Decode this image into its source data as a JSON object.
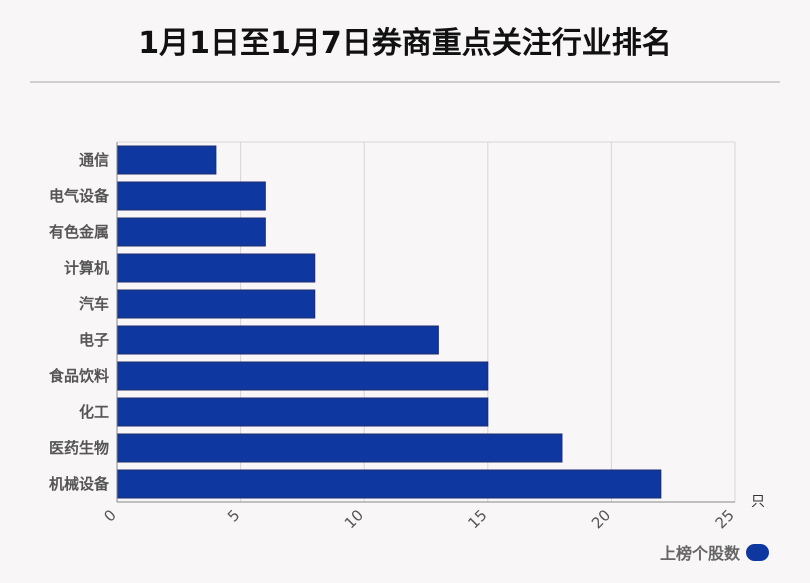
{
  "title": "1月1日至1月7日券商重点关注行业排名",
  "chart_data": {
    "type": "bar",
    "orientation": "horizontal",
    "title": "1月1日至1月7日券商重点关注行业排名",
    "categories": [
      "通信",
      "电气设备",
      "有色金属",
      "计算机",
      "汽车",
      "电子",
      "食品饮料",
      "化工",
      "医药生物",
      "机械设备"
    ],
    "series": [
      {
        "name": "上榜个股数",
        "values": [
          4,
          6,
          6,
          8,
          8,
          13,
          15,
          15,
          18,
          22
        ]
      }
    ],
    "xlim": [
      0,
      25
    ],
    "xticks": [
      0,
      5,
      10,
      15,
      20,
      25
    ],
    "xunit": "只",
    "grid": "vertical",
    "legend": "bottom-right",
    "colors": {
      "bar": "#0f37a0",
      "bar_border": "#1c2c6e",
      "grid": "#d6d6d6",
      "axis": "#888888"
    }
  },
  "legend": {
    "label": "上榜个股数",
    "color": "#0f37a0"
  }
}
